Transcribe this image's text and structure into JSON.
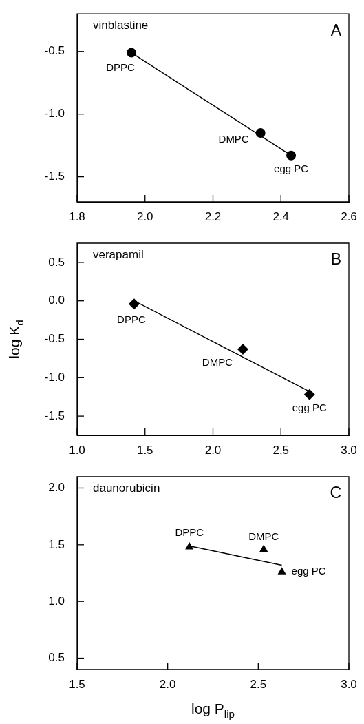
{
  "chart_data": [
    {
      "type": "scatter",
      "xlim": [
        1.8,
        2.6
      ],
      "xticks": [
        {
          "value": 1.8,
          "label": "1.8"
        },
        {
          "value": 2.0,
          "label": "2.0"
        },
        {
          "value": 2.2,
          "label": "2.2"
        },
        {
          "value": 2.4,
          "label": "2.4"
        },
        {
          "value": 2.6,
          "label": "2.6"
        }
      ],
      "ylim": [
        -1.7,
        -0.2
      ],
      "yticks": [
        {
          "value": -1.5,
          "label": "-1.5"
        },
        {
          "value": -1.0,
          "label": "-1.0"
        },
        {
          "value": -0.5,
          "label": "-0.5"
        }
      ],
      "grid": false,
      "legend": false,
      "annotations": [
        "vinblastine",
        "A",
        {
          "text": "DPPC",
          "x": 1.96,
          "y": -0.51
        },
        {
          "text": "DMPC",
          "x": 2.34,
          "y": -1.15
        },
        {
          "text": "egg PC",
          "x": 2.43,
          "y": -1.33
        }
      ],
      "series": [
        {
          "type": "scatter",
          "color": "#000000",
          "marker": "circle",
          "x": [
            1.96,
            2.34,
            2.43
          ],
          "values": [
            -0.51,
            -1.15,
            -1.33
          ]
        },
        {
          "type": "line",
          "color": "#000000",
          "marker": "none",
          "line_style": "solid",
          "x": [
            1.96,
            2.43
          ],
          "values": [
            -0.51,
            -1.33
          ]
        }
      ]
    },
    {
      "type": "scatter",
      "ylabel": "log K$_{d}$",
      "xlim": [
        1.0,
        3.0
      ],
      "xticks": [
        {
          "value": 1.0,
          "label": "1.0"
        },
        {
          "value": 1.5,
          "label": "1.5"
        },
        {
          "value": 2.0,
          "label": "2.0"
        },
        {
          "value": 2.5,
          "label": "2.5"
        },
        {
          "value": 3.0,
          "label": "3.0"
        }
      ],
      "ylim": [
        -1.75,
        0.75
      ],
      "yticks": [
        {
          "value": -1.5,
          "label": "-1.5"
        },
        {
          "value": -1.0,
          "label": "-1.0"
        },
        {
          "value": -0.5,
          "label": "-0.5"
        },
        {
          "value": 0.0,
          "label": "0.0"
        },
        {
          "value": 0.5,
          "label": "0.5"
        }
      ],
      "grid": false,
      "legend": false,
      "annotations": [
        "verapamil",
        "B",
        {
          "text": "DPPC",
          "x": 1.42,
          "y": -0.04
        },
        {
          "text": "DMPC",
          "x": 2.22,
          "y": -0.63
        },
        {
          "text": "egg PC",
          "x": 2.71,
          "y": -1.22
        }
      ],
      "series": [
        {
          "type": "scatter",
          "color": "#000000",
          "marker": "diamond",
          "x": [
            1.42,
            2.22,
            2.71
          ],
          "values": [
            -0.04,
            -0.63,
            -1.22
          ]
        },
        {
          "type": "line",
          "color": "#000000",
          "marker": "none",
          "line_style": "solid",
          "x": [
            1.42,
            2.71
          ],
          "values": [
            0.0,
            -1.18
          ]
        }
      ]
    },
    {
      "type": "scatter",
      "xlabel": "log P$_{lip}$",
      "xlim": [
        1.5,
        3.0
      ],
      "xticks": [
        1.5,
        {
          "value": 2.0,
          "label": "2.0"
        },
        2.5,
        {
          "value": 3.0,
          "label": "3.0"
        }
      ],
      "ylim": [
        0.4,
        2.1
      ],
      "yticks": [
        0.5,
        {
          "value": 1.0,
          "label": "1.0"
        },
        1.5,
        {
          "value": 2.0,
          "label": "2.0"
        }
      ],
      "grid": false,
      "legend": false,
      "annotations": [
        "daunorubicin",
        "C",
        {
          "text": "DPPC",
          "x": 2.12,
          "y": 1.48
        },
        {
          "text": "DMPC",
          "x": 2.53,
          "y": 1.46
        },
        {
          "text": "egg PC",
          "x": 2.63,
          "y": 1.26
        }
      ],
      "series": [
        {
          "type": "scatter",
          "color": "#000000",
          "marker": "triangle",
          "x": [
            2.12,
            2.53,
            2.63
          ],
          "values": [
            1.48,
            1.46,
            1.26
          ]
        },
        {
          "type": "line",
          "color": "#000000",
          "marker": "none",
          "line_style": "solid",
          "x": [
            2.12,
            2.63
          ],
          "values": [
            1.49,
            1.32
          ]
        }
      ]
    }
  ]
}
